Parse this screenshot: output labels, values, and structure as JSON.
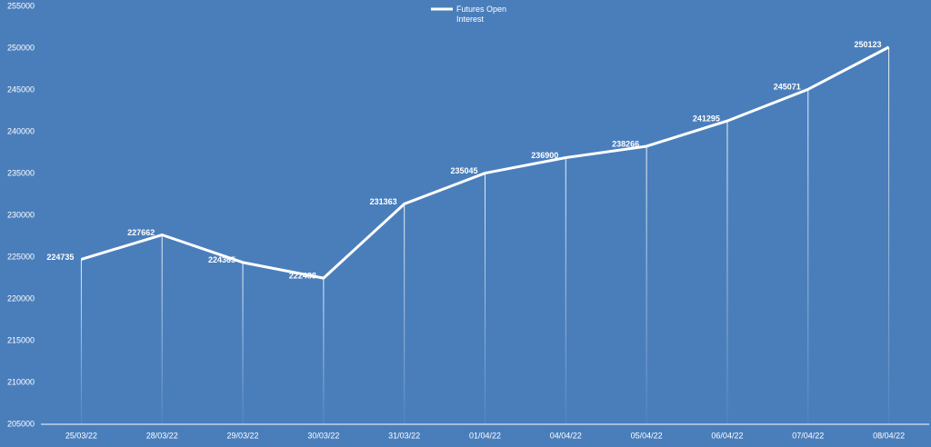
{
  "chart_data": {
    "type": "line",
    "categories": [
      "25/03/22",
      "28/03/22",
      "29/03/22",
      "30/03/22",
      "31/03/22",
      "01/04/22",
      "04/04/22",
      "05/04/22",
      "06/04/22",
      "07/04/22",
      "08/04/22"
    ],
    "series": [
      {
        "name": "Futures Open Interest",
        "color": "#ffffff",
        "values": [
          224735,
          227662,
          224365,
          222488,
          231363,
          235045,
          236900,
          238266,
          241295,
          245071,
          250123
        ]
      }
    ],
    "ylim": [
      205000,
      255000
    ],
    "yticks": [
      205000,
      210000,
      215000,
      220000,
      225000,
      230000,
      235000,
      240000,
      245000,
      250000,
      255000
    ],
    "legend": "top"
  }
}
